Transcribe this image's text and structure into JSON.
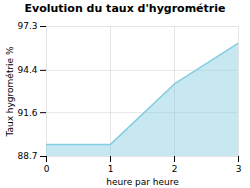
{
  "chart_data": {
    "type": "area",
    "title": "Evolution du taux d'hygrométrie",
    "xlabel": "heure par heure",
    "ylabel": "Taux hygrométrie %",
    "x": [
      0,
      1,
      2,
      3
    ],
    "values": [
      89.5,
      89.5,
      93.5,
      96.2
    ],
    "xlim": [
      0,
      3
    ],
    "ylim": [
      88.7,
      97.3
    ],
    "xticks": [
      0,
      1,
      2,
      3
    ],
    "yticks": [
      88.7,
      91.6,
      94.4,
      97.3
    ],
    "grid": true,
    "color": "#85cde0"
  }
}
